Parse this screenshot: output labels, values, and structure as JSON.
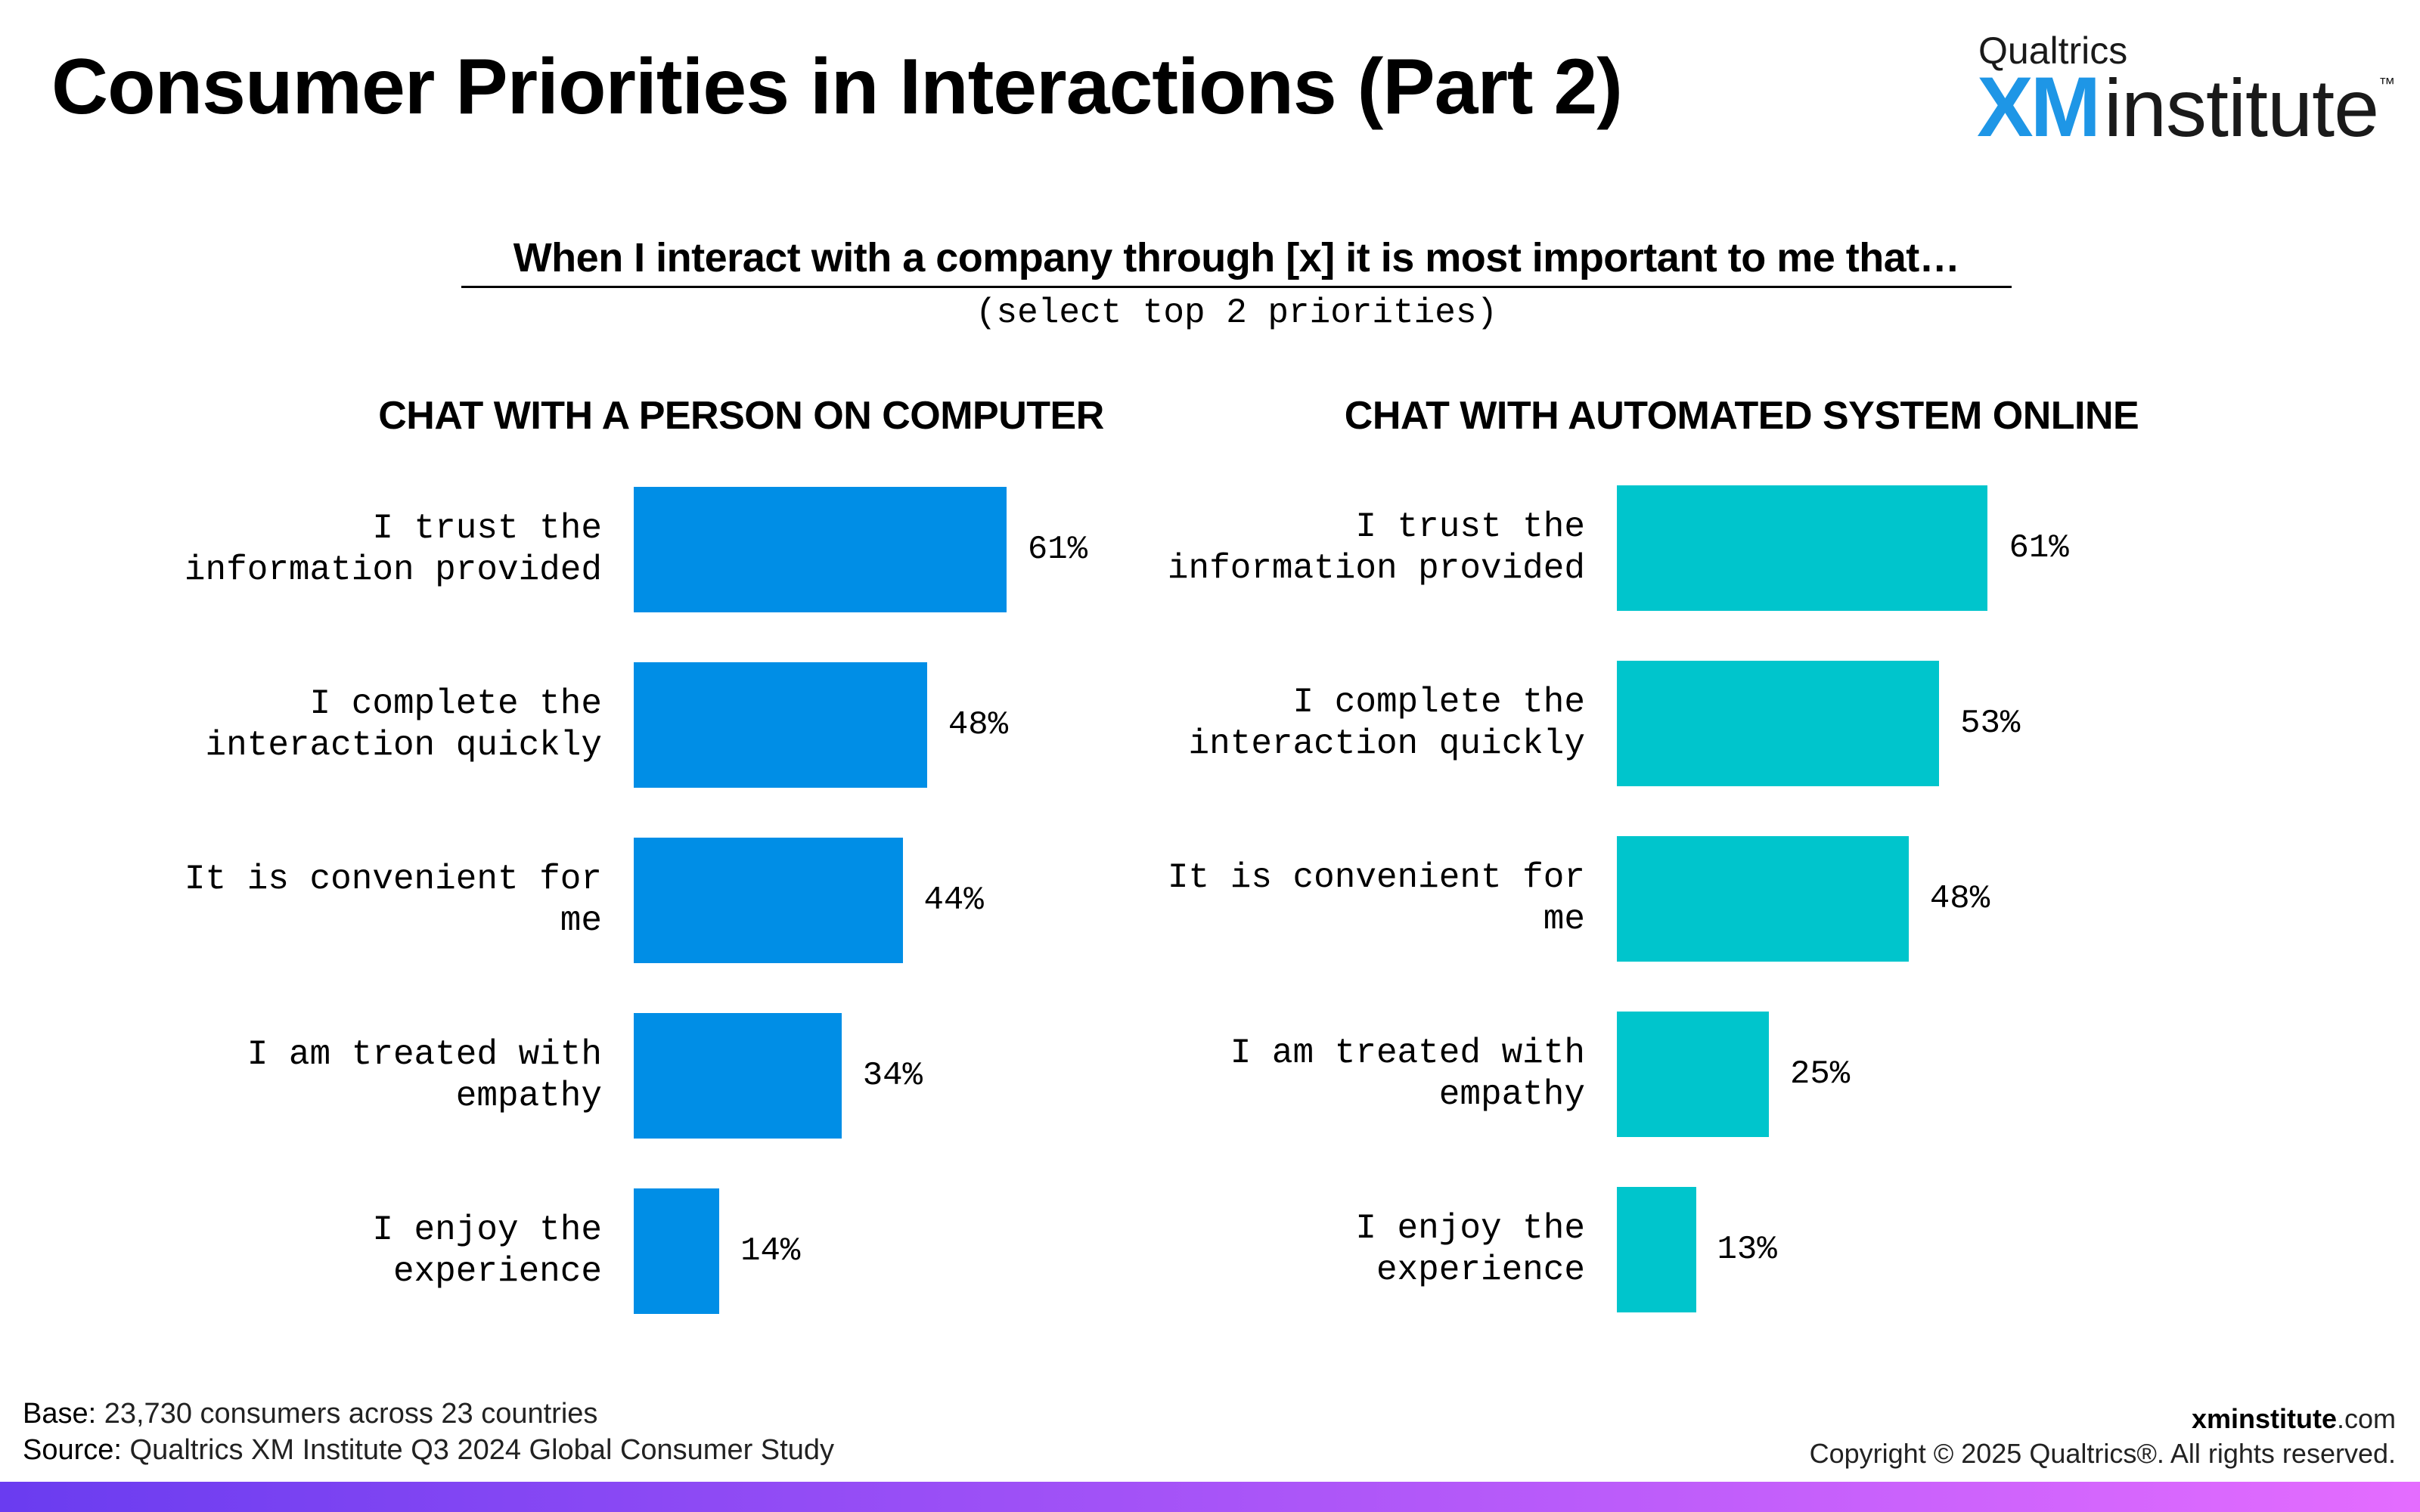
{
  "header": {
    "title": "Consumer Priorities in Interactions (Part 2)",
    "logo_top": "Qualtrics",
    "logo_xm": "XM",
    "logo_institute": "institute",
    "logo_tm": "™"
  },
  "question": {
    "text": "When I interact with a company through [x] it is most important to me that…",
    "instruction": "(select top 2 priorities)"
  },
  "chart_data": [
    {
      "type": "bar",
      "orientation": "horizontal",
      "title": "CHAT WITH A PERSON ON COMPUTER",
      "categories": [
        "I trust the\ninformation provided",
        "I complete the\ninteraction quickly",
        "It is convenient for\nme",
        "I am treated with\nempathy",
        "I enjoy the\nexperience"
      ],
      "values": [
        61,
        48,
        44,
        34,
        14
      ],
      "value_labels": [
        "61%",
        "48%",
        "44%",
        "34%",
        "14%"
      ],
      "unit": "%",
      "color": "#008ee6",
      "xlim": [
        0,
        100
      ],
      "grid": false,
      "legend": "none"
    },
    {
      "type": "bar",
      "orientation": "horizontal",
      "title": "CHAT WITH AUTOMATED SYSTEM ONLINE",
      "categories": [
        "I trust the\ninformation provided",
        "I complete the\ninteraction quickly",
        "It is convenient for\nme",
        "I am treated with\nempathy",
        "I enjoy the\nexperience"
      ],
      "values": [
        61,
        53,
        48,
        25,
        13
      ],
      "value_labels": [
        "61%",
        "53%",
        "48%",
        "25%",
        "13%"
      ],
      "unit": "%",
      "color": "#00c5cc",
      "xlim": [
        0,
        100
      ],
      "grid": false,
      "legend": "none"
    }
  ],
  "footer": {
    "base_key": "Base:",
    "base_value": "23,730 consumers across 23 countries",
    "source_key": "Source:",
    "source_value": "Qualtrics XM Institute Q3 2024 Global Consumer Study",
    "site_bold": "xminstitute",
    "site_rest": ".com",
    "copyright": "Copyright © 2025 Qualtrics®. All rights reserved."
  },
  "colors": {
    "person_bar": "#008ee6",
    "automated_bar": "#00c5cc",
    "gradient_start": "#6a3cf0",
    "gradient_end": "#e46cff"
  }
}
